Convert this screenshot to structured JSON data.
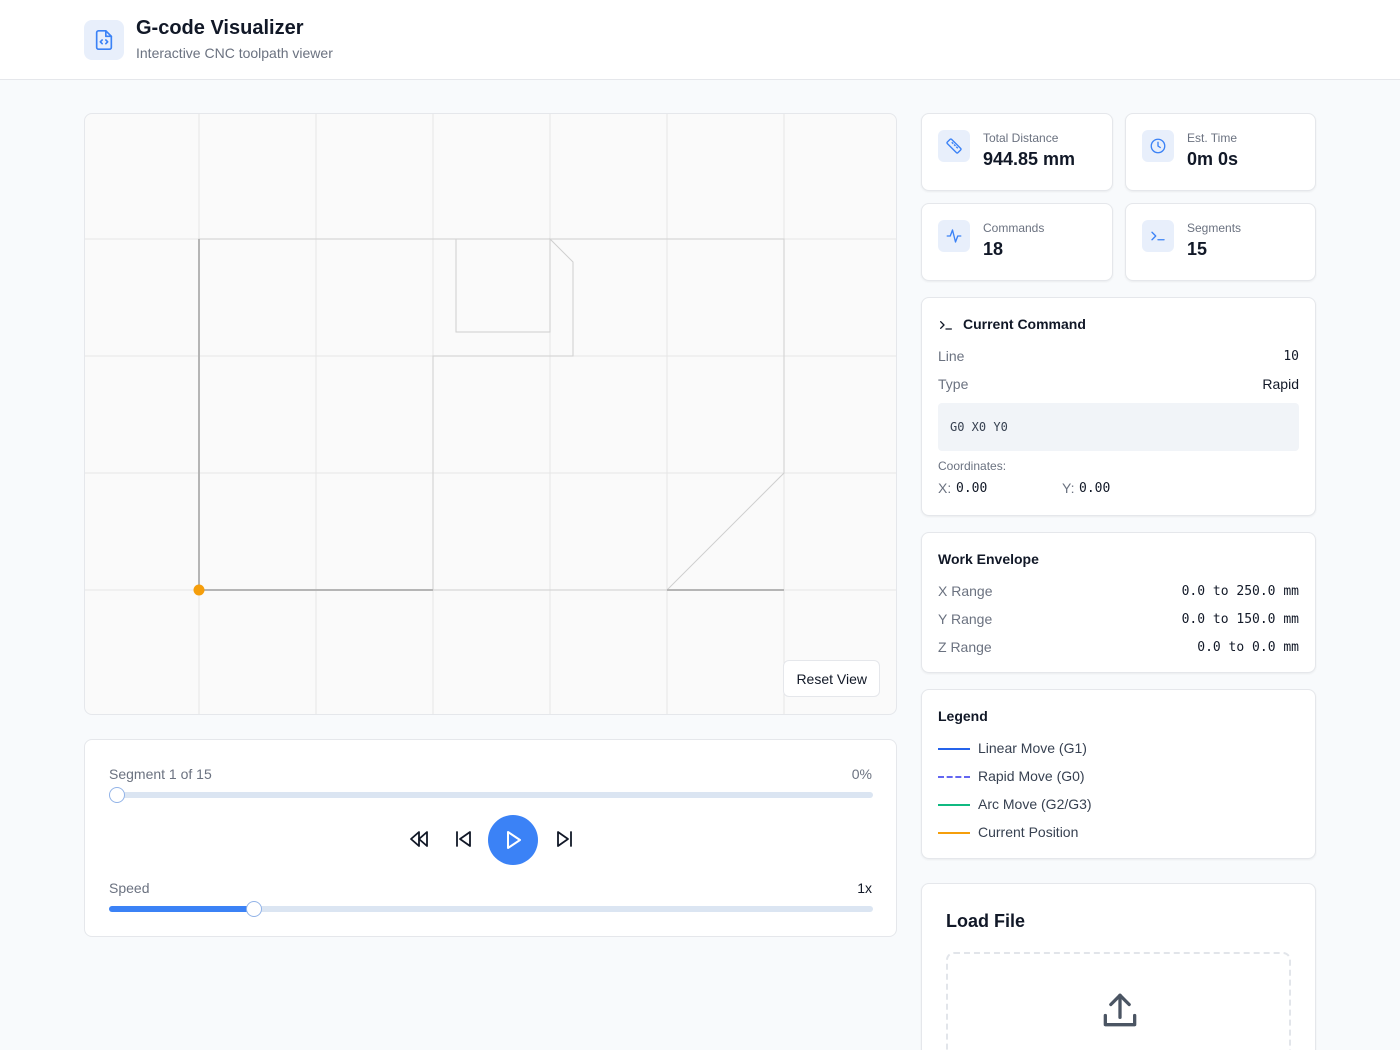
{
  "header": {
    "app_icon": "file-code-icon",
    "title": "G-code Visualizer",
    "subtitle": "Interactive CNC toolpath viewer"
  },
  "canvas": {
    "reset_label": "Reset View"
  },
  "playback": {
    "segment_text": "Segment 1 of 15",
    "percent_text": "0%",
    "progress_fraction": 0,
    "speed_label": "Speed",
    "speed_value": "1x",
    "speed_fraction": 0.19,
    "controls": [
      "rewind-icon",
      "skip-back-icon",
      "play-icon",
      "skip-forward-icon"
    ]
  },
  "stats": {
    "total_distance": {
      "icon": "ruler-icon",
      "label": "Total Distance",
      "value": "944.85 mm"
    },
    "est_time": {
      "icon": "clock-icon",
      "label": "Est. Time",
      "value": "0m 0s"
    },
    "commands": {
      "icon": "activity-icon",
      "label": "Commands",
      "value": "18"
    },
    "segments": {
      "icon": "terminal-icon",
      "label": "Segments",
      "value": "15"
    }
  },
  "current_command": {
    "title": "Current Command",
    "line_label": "Line",
    "line_value": "10",
    "type_label": "Type",
    "type_value": "Rapid",
    "code": "G0 X0 Y0",
    "coords_label": "Coordinates:",
    "x_label": "X:",
    "x_value": "0.00",
    "y_label": "Y:",
    "y_value": "0.00"
  },
  "work_envelope": {
    "title": "Work Envelope",
    "rows": [
      {
        "label": "X Range",
        "value": "0.0 to 250.0 mm"
      },
      {
        "label": "Y Range",
        "value": "0.0 to 150.0 mm"
      },
      {
        "label": "Z Range",
        "value": "0.0 to 0.0 mm"
      }
    ]
  },
  "legend": {
    "title": "Legend",
    "items": [
      {
        "label": "Linear Move (G1)",
        "color": "#2563eb",
        "style": "solid"
      },
      {
        "label": "Rapid Move (G0)",
        "color": "#6366f1",
        "style": "dashed"
      },
      {
        "label": "Arc Move (G2/G3)",
        "color": "#10b981",
        "style": "solid"
      },
      {
        "label": "Current Position",
        "color": "#f59e0b",
        "style": "solid"
      }
    ]
  },
  "load_file": {
    "title": "Load File",
    "icon": "upload-icon"
  },
  "colors": {
    "accent": "#3b82f6",
    "position_marker": "#f59e0b",
    "toolpath": "#c8c8c8"
  }
}
